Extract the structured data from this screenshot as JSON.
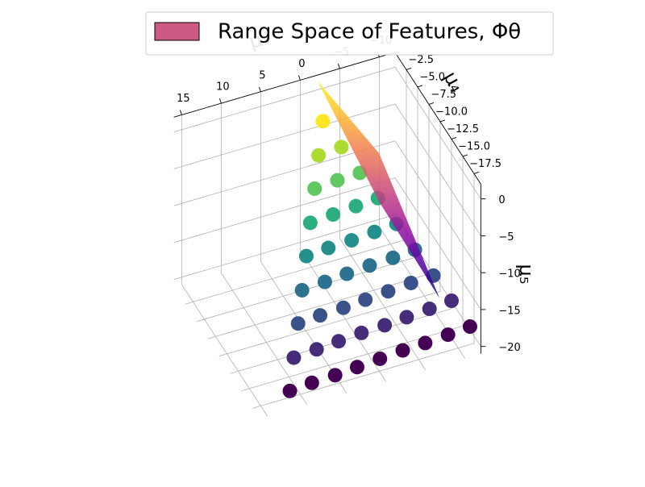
{
  "chart_data": {
    "type": "scatter3d",
    "xlabel": "μ₃",
    "ylabel": "μ₄",
    "zlabel": "μ₅",
    "xlim": [
      -12,
      16
    ],
    "ylim": [
      -19,
      0
    ],
    "zlim": [
      -21,
      2
    ],
    "xticks": [
      {
        "value": -10,
        "label": "−10"
      },
      {
        "value": -5,
        "label": "−5"
      },
      0,
      5,
      10,
      15
    ],
    "yticks": [
      {
        "value": -2.5,
        "label": "−2.5"
      },
      {
        "value": -5.0,
        "label": "−5.0"
      },
      {
        "value": -7.5,
        "label": "−7.5"
      },
      {
        "value": -10.0,
        "label": "−10.0"
      },
      {
        "value": -12.5,
        "label": "−12.5"
      },
      {
        "value": -15.0,
        "label": "−15.0"
      },
      {
        "value": -17.5,
        "label": "−17.5"
      }
    ],
    "zticks": [
      0,
      {
        "value": -5,
        "label": "−5"
      },
      {
        "value": -10,
        "label": "−10"
      },
      {
        "value": -15,
        "label": "−15"
      },
      {
        "value": -20,
        "label": "−20"
      }
    ],
    "grid": true,
    "colormap": "viridis",
    "legend": "upper right",
    "x": [
      -1.6,
      0.2,
      -2.8,
      1.9,
      -1.1,
      -4.0,
      3.7,
      0.7,
      -2.3,
      -5.2,
      5.4,
      2.5,
      -0.5,
      -3.5,
      -6.4,
      7.2,
      4.2,
      1.3,
      -1.7,
      -4.7,
      -7.6,
      8.9,
      6.0,
      3.0,
      0.1,
      -2.9,
      -5.9,
      -8.8,
      10.7,
      7.7,
      4.8,
      1.8,
      -1.2,
      -4.1,
      -7.1,
      -10.0,
      12.4,
      9.5,
      6.5,
      3.6,
      0.6,
      -2.4,
      -5.3,
      -8.3,
      -11.2
    ],
    "y": [
      -2.2,
      -4.4,
      -4.2,
      -6.5,
      -6.3,
      -6.2,
      -8.7,
      -8.5,
      -8.3,
      -8.1,
      -10.8,
      -10.6,
      -10.5,
      -10.3,
      -10.1,
      -13.0,
      -12.8,
      -12.6,
      -12.4,
      -12.3,
      -12.1,
      -15.1,
      -14.9,
      -14.8,
      -14.6,
      -14.4,
      -14.2,
      -14.1,
      -17.3,
      -17.1,
      -16.9,
      -16.7,
      -16.6,
      -16.4,
      -16.2,
      -16.0,
      -19.4,
      -19.2,
      -19.1,
      -18.9,
      -18.7,
      -18.5,
      -18.4,
      -18.2,
      -18.0
    ],
    "z": [
      -2,
      -4,
      -4,
      -6,
      -6,
      -6,
      -8,
      -8,
      -8,
      -8,
      -10,
      -10,
      -10,
      -10,
      -10,
      -12,
      -12,
      -12,
      -12,
      -12,
      -12,
      -14,
      -14,
      -14,
      -14,
      -14,
      -14,
      -14,
      -16,
      -16,
      -16,
      -16,
      -16,
      -16,
      -16,
      -16,
      -18,
      -18,
      -18,
      -18,
      -18,
      -18,
      -18,
      -18,
      -18
    ],
    "surface": {
      "name": "Range Space of Features, Φθ",
      "color": "#cc5a85",
      "colormap": "plasma",
      "x": [
        -2.8,
        -7.4,
        -8.9,
        -6.1
      ],
      "y": [
        1.1,
        -4.5,
        -15.3,
        -6.8
      ],
      "z": [
        0,
        -6,
        -16,
        -10
      ]
    }
  }
}
